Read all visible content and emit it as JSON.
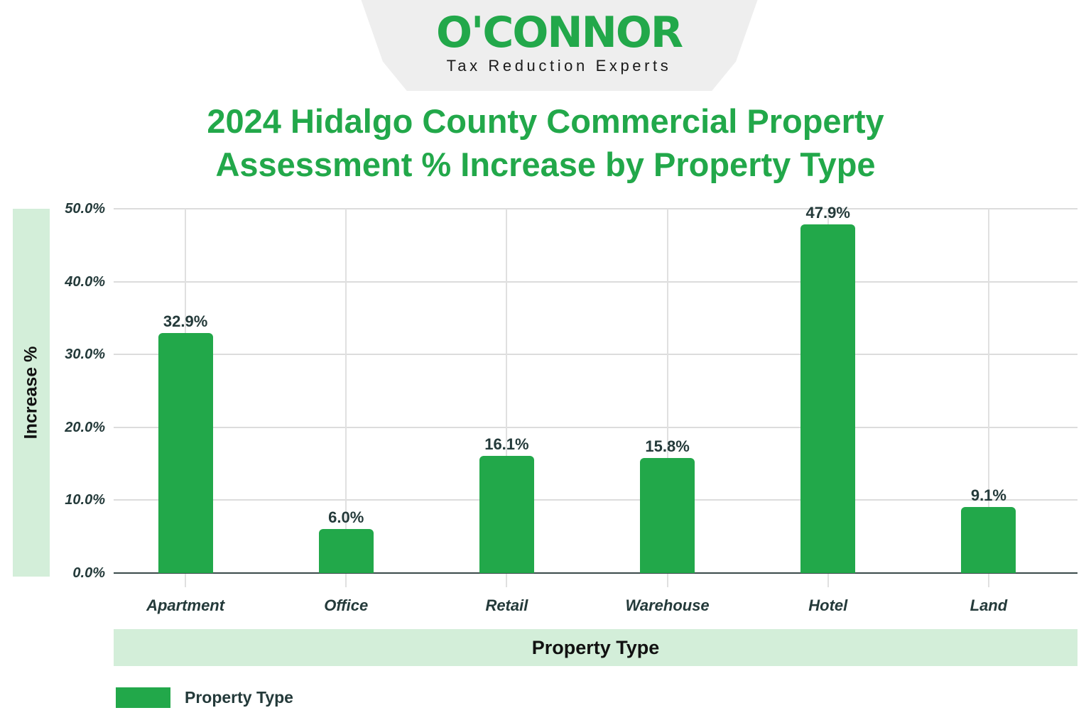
{
  "logo": {
    "wordmark": "O'CONNOR",
    "tagline": "Tax Reduction Experts",
    "color": "#22a84a"
  },
  "title": {
    "line1": "2024 Hidalgo County Commercial Property",
    "line2": "Assessment % Increase by Property Type"
  },
  "chart_data": {
    "type": "bar",
    "title": "2024 Hidalgo County Commercial Property Assessment % Increase by Property Type",
    "xlabel": "Property Type",
    "ylabel": "Increase %",
    "categories": [
      "Apartment",
      "Office",
      "Retail",
      "Warehouse",
      "Hotel",
      "Land"
    ],
    "values": [
      32.9,
      6.0,
      16.1,
      15.8,
      47.9,
      9.1
    ],
    "value_labels": [
      "32.9%",
      "6.0%",
      "16.1%",
      "15.8%",
      "47.9%",
      "9.1%"
    ],
    "ylim": [
      0,
      50
    ],
    "yticks": [
      "50.0%",
      "40.0%",
      "30.0%",
      "20.0%",
      "10.0%",
      "0.0%"
    ],
    "grid": true,
    "legend": {
      "position": "bottom-left",
      "entries": [
        "Property Type"
      ]
    },
    "series": [
      {
        "name": "Property Type",
        "color": "#22a84a",
        "values": [
          32.9,
          6.0,
          16.1,
          15.8,
          47.9,
          9.1
        ]
      }
    ]
  },
  "colors": {
    "accent": "#22a84a",
    "band": "#d3eed9",
    "text": "#243a3a"
  }
}
